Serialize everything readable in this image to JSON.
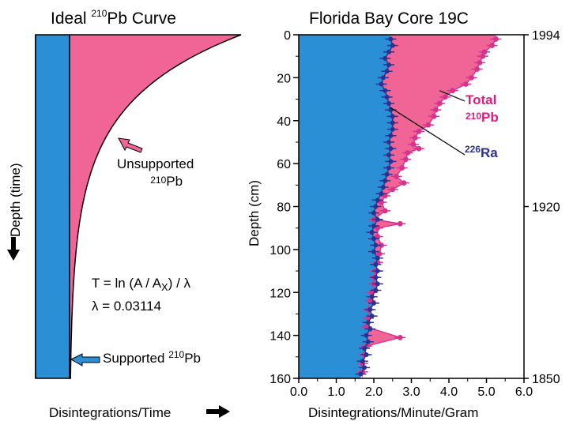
{
  "chart_data": [
    {
      "type": "area",
      "title": "Ideal ²¹⁰Pb Curve",
      "xlabel": "Disintegrations/Time",
      "ylabel": "Depth (time)",
      "annotations": {
        "unsupported": "Unsupported ²¹⁰Pb",
        "supported": "Supported ²¹⁰Pb",
        "equation": "T = ln (A / Aₓ) / λ",
        "lambda": "λ = 0.03114"
      },
      "colors": {
        "supported": "#2b8fd6",
        "unsupported": "#f06595",
        "marker": "#d6338f"
      }
    },
    {
      "type": "line",
      "title": "Florida Bay Core 19C",
      "xlabel": "Disintegrations/Minute/Gram",
      "ylabel": "Depth (cm)",
      "xlim": [
        0,
        6
      ],
      "ylim": [
        160,
        0
      ],
      "x_ticks": [
        "0.0",
        "1.0",
        "2.0",
        "3.0",
        "4.0",
        "5.0",
        "6.0"
      ],
      "y_ticks": [
        "0",
        "20",
        "40",
        "60",
        "80",
        "100",
        "120",
        "140",
        "160"
      ],
      "year_axis": [
        {
          "depth": 0,
          "label": "1994"
        },
        {
          "depth": 80,
          "label": "1920"
        },
        {
          "depth": 160,
          "label": "1850"
        }
      ],
      "series": [
        {
          "name": "Total ²¹⁰Pb",
          "color": "#d6338f",
          "points": [
            [
              5.25,
              2
            ],
            [
              5.15,
              5
            ],
            [
              4.95,
              8
            ],
            [
              4.9,
              10
            ],
            [
              4.82,
              13
            ],
            [
              4.75,
              16
            ],
            [
              4.6,
              20
            ],
            [
              4.45,
              23
            ],
            [
              4.1,
              26
            ],
            [
              3.9,
              29
            ],
            [
              3.75,
              32
            ],
            [
              3.65,
              35
            ],
            [
              3.6,
              38
            ],
            [
              3.45,
              42
            ],
            [
              3.2,
              45
            ],
            [
              3.1,
              48
            ],
            [
              3.05,
              51
            ],
            [
              3.2,
              53
            ],
            [
              2.9,
              55
            ],
            [
              2.85,
              58
            ],
            [
              2.75,
              62
            ],
            [
              2.6,
              66
            ],
            [
              2.8,
              69
            ],
            [
              2.5,
              72
            ],
            [
              2.3,
              75
            ],
            [
              2.2,
              78
            ],
            [
              2.3,
              82
            ],
            [
              2.0,
              86
            ],
            [
              2.7,
              88
            ],
            [
              2.1,
              90
            ],
            [
              2.1,
              94
            ],
            [
              2.2,
              98
            ],
            [
              2.15,
              102
            ],
            [
              2.1,
              106
            ],
            [
              2.05,
              110
            ],
            [
              2.0,
              113
            ],
            [
              2.0,
              116
            ],
            [
              1.95,
              120
            ],
            [
              1.9,
              124
            ],
            [
              1.85,
              128
            ],
            [
              1.85,
              132
            ],
            [
              1.8,
              136
            ],
            [
              2.7,
              141
            ],
            [
              1.8,
              145
            ],
            [
              1.75,
              149
            ],
            [
              1.7,
              153
            ],
            [
              1.7,
              157
            ]
          ]
        },
        {
          "name": "²²⁶Ra",
          "color": "#2b3191",
          "points": [
            [
              2.45,
              2
            ],
            [
              2.5,
              5
            ],
            [
              2.4,
              8
            ],
            [
              2.3,
              11
            ],
            [
              2.4,
              14
            ],
            [
              2.35,
              17
            ],
            [
              2.25,
              20
            ],
            [
              2.2,
              23
            ],
            [
              2.3,
              26
            ],
            [
              2.35,
              29
            ],
            [
              2.4,
              32
            ],
            [
              2.45,
              35
            ],
            [
              2.5,
              38
            ],
            [
              2.5,
              41
            ],
            [
              2.5,
              44
            ],
            [
              2.45,
              47
            ],
            [
              2.4,
              50
            ],
            [
              2.45,
              53
            ],
            [
              2.4,
              56
            ],
            [
              2.45,
              59
            ],
            [
              2.4,
              62
            ],
            [
              2.35,
              65
            ],
            [
              2.3,
              68
            ],
            [
              2.25,
              71
            ],
            [
              2.2,
              74
            ],
            [
              2.1,
              77
            ],
            [
              2.05,
              80
            ],
            [
              2.0,
              83
            ],
            [
              2.1,
              86
            ],
            [
              2.0,
              89
            ],
            [
              1.95,
              92
            ],
            [
              2.0,
              95
            ],
            [
              2.05,
              98
            ],
            [
              2.0,
              101
            ],
            [
              2.1,
              104
            ],
            [
              2.05,
              107
            ],
            [
              2.1,
              110
            ],
            [
              2.05,
              113
            ],
            [
              2.1,
              116
            ],
            [
              2.05,
              119
            ],
            [
              1.95,
              122
            ],
            [
              2.0,
              125
            ],
            [
              1.9,
              128
            ],
            [
              1.95,
              131
            ],
            [
              1.85,
              134
            ],
            [
              1.9,
              137
            ],
            [
              1.8,
              140
            ],
            [
              1.85,
              143
            ],
            [
              1.75,
              146
            ],
            [
              1.8,
              149
            ],
            [
              1.7,
              152
            ],
            [
              1.75,
              155
            ],
            [
              1.65,
              158
            ]
          ]
        }
      ],
      "labels": {
        "total_line1": "Total",
        "total_iso": "210",
        "total_el": "Pb",
        "ra_iso": "226",
        "ra_el": "Ra"
      },
      "colors": {
        "supported": "#2b8fd6",
        "unsupported": "#f06595"
      }
    }
  ]
}
